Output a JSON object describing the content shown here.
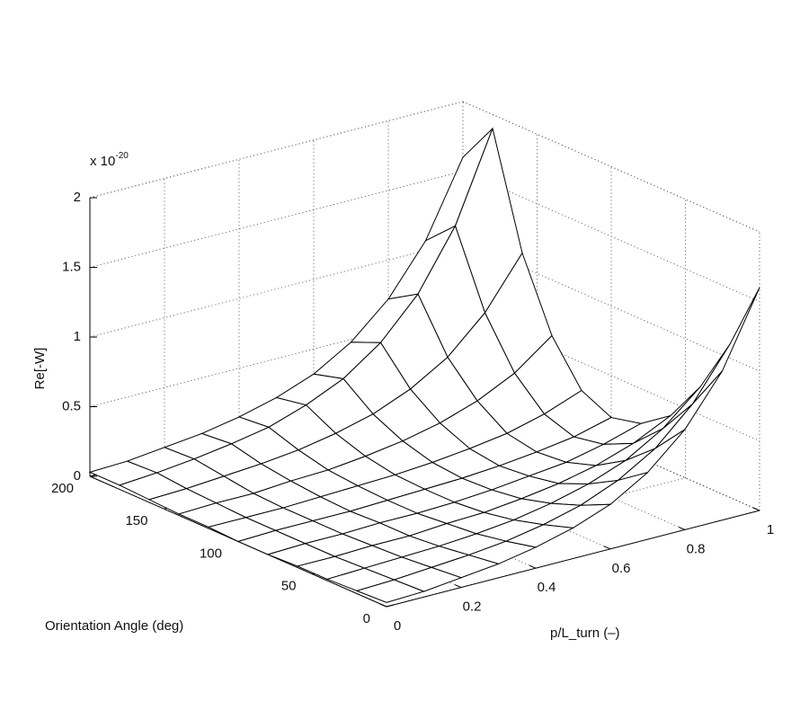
{
  "chart_data": {
    "type": "surface",
    "xlabel": "p/L_turn (–)",
    "ylabel": "Orientation Angle (deg)",
    "zlabel": "Re[-W]",
    "zlabel_multiplier": {
      "base": "x 10",
      "exponent": "-20"
    },
    "x": [
      0,
      0.1,
      0.2,
      0.3,
      0.4,
      0.5,
      0.6,
      0.7,
      0.8,
      0.9,
      1
    ],
    "y": [
      0,
      20,
      40,
      60,
      80,
      100,
      120,
      140,
      160,
      180,
      200
    ],
    "z": [
      [
        0.03,
        0.04,
        0.07,
        0.1,
        0.15,
        0.22,
        0.32,
        0.48,
        0.72,
        1.07,
        1.6
      ],
      [
        0.02,
        0.03,
        0.05,
        0.07,
        0.1,
        0.15,
        0.22,
        0.33,
        0.49,
        0.74,
        1.1
      ],
      [
        0.01,
        0.02,
        0.03,
        0.04,
        0.06,
        0.09,
        0.14,
        0.21,
        0.31,
        0.47,
        0.7
      ],
      [
        0.01,
        0.01,
        0.02,
        0.02,
        0.04,
        0.05,
        0.08,
        0.12,
        0.18,
        0.27,
        0.4
      ],
      [
        0,
        0.01,
        0.01,
        0.02,
        0.02,
        0.03,
        0.05,
        0.08,
        0.11,
        0.17,
        0.25
      ],
      [
        0,
        0.01,
        0.01,
        0.01,
        0.02,
        0.03,
        0.04,
        0.06,
        0.09,
        0.13,
        0.2
      ],
      [
        0.01,
        0.01,
        0.01,
        0.02,
        0.03,
        0.04,
        0.06,
        0.09,
        0.13,
        0.2,
        0.3
      ],
      [
        0.01,
        0.02,
        0.02,
        0.04,
        0.05,
        0.08,
        0.12,
        0.18,
        0.27,
        0.4,
        0.6
      ],
      [
        0.02,
        0.03,
        0.05,
        0.07,
        0.1,
        0.15,
        0.22,
        0.33,
        0.49,
        0.74,
        1.1
      ],
      [
        0.03,
        0.05,
        0.08,
        0.12,
        0.17,
        0.26,
        0.38,
        0.57,
        0.85,
        1.27,
        1.9
      ],
      [
        0.03,
        0.04,
        0.07,
        0.1,
        0.15,
        0.22,
        0.32,
        0.48,
        0.72,
        1.07,
        1.6
      ]
    ],
    "xlim": [
      0,
      1
    ],
    "xticks": [
      0,
      0.2,
      0.4,
      0.6,
      0.8,
      1
    ],
    "ylim": [
      0,
      200
    ],
    "yticks": [
      0,
      50,
      100,
      150,
      200
    ],
    "zlim": [
      0,
      2
    ],
    "zticks": [
      0,
      0.5,
      1,
      1.5,
      2
    ],
    "grid": true,
    "color": "#ffffff"
  }
}
